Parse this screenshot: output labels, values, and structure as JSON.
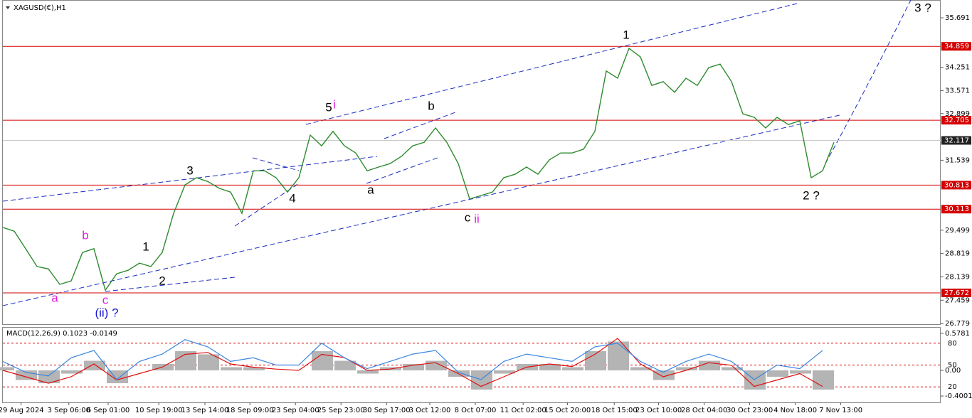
{
  "chart_data": [
    {
      "type": "line",
      "title": "XAGUSD(€),H1",
      "color": "#2e8b2e",
      "x": [
        0,
        1,
        2,
        3,
        4,
        5,
        6,
        7,
        8,
        9,
        10,
        11,
        12,
        13,
        14,
        15,
        16,
        17,
        18,
        19,
        20,
        21,
        22,
        23,
        24,
        25,
        26,
        27,
        28,
        29,
        30,
        31,
        32,
        33,
        34,
        35,
        36,
        37,
        38,
        39,
        40,
        41,
        42,
        43,
        44,
        45,
        46,
        47,
        48,
        49,
        50,
        51,
        52,
        53,
        54,
        55,
        56,
        57,
        58,
        59,
        60,
        61,
        62,
        63,
        64,
        65,
        66,
        67,
        68,
        69,
        70,
        71,
        72,
        73
      ],
      "values": [
        29.58,
        29.47,
        28.96,
        28.44,
        28.37,
        27.92,
        28.02,
        28.85,
        28.96,
        27.75,
        28.23,
        28.33,
        28.54,
        28.44,
        28.85,
        29.99,
        30.82,
        31.03,
        30.92,
        30.72,
        30.61,
        29.99,
        31.23,
        31.23,
        31.03,
        30.61,
        31.03,
        32.27,
        31.96,
        32.38,
        31.96,
        31.75,
        31.23,
        31.34,
        31.44,
        31.65,
        31.96,
        32.06,
        32.48,
        32.06,
        31.44,
        30.41,
        30.51,
        30.61,
        31.03,
        31.13,
        31.34,
        31.13,
        31.55,
        31.75,
        31.75,
        31.86,
        32.38,
        34.14,
        33.93,
        34.8,
        34.55,
        33.72,
        33.83,
        33.52,
        33.93,
        33.72,
        34.24,
        34.34,
        33.83,
        32.89,
        32.79,
        32.48,
        32.79,
        32.58,
        32.69,
        31.03,
        31.23,
        32.06
      ],
      "xlim": [
        0,
        82.375
      ],
      "ylim": [
        26.76,
        36.21
      ],
      "yticks": [
        35.691,
        34.251,
        33.571,
        32.899,
        31.539,
        29.499,
        28.819,
        28.139,
        27.459,
        26.779
      ],
      "xticks": [
        {
          "value": 1.6,
          "label": "29 Aug 2024"
        },
        {
          "value": 5.8,
          "label": "3 Sep 06:00"
        },
        {
          "value": 9.25,
          "label": "6 Sep 01:00"
        },
        {
          "value": 13.7,
          "label": "10 Sep 19:00"
        },
        {
          "value": 17.75,
          "label": "13 Sep 14:00"
        },
        {
          "value": 21.7,
          "label": "18 Sep 09:00"
        },
        {
          "value": 25.7,
          "label": "23 Sep 04:00"
        },
        {
          "value": 29.7,
          "label": "25 Sep 23:00"
        },
        {
          "value": 33.7,
          "label": "30 Sep 17:00"
        },
        {
          "value": 37.5,
          "label": "3 Oct 12:00"
        },
        {
          "value": 41.5,
          "label": "8 Oct 07:00"
        },
        {
          "value": 45.7,
          "label": "11 Oct 02:00"
        },
        {
          "value": 49.6,
          "label": "15 Oct 20:00"
        },
        {
          "value": 53.7,
          "label": "18 Oct 15:00"
        },
        {
          "value": 57.6,
          "label": "23 Oct 10:00"
        },
        {
          "value": 61.6,
          "label": "28 Oct 04:00"
        },
        {
          "value": 65.6,
          "label": "30 Oct 23:00"
        },
        {
          "value": 69.6,
          "label": "4 Nov 18:00"
        },
        {
          "value": 73.6,
          "label": "7 Nov 13:00"
        }
      ],
      "levels": [
        34.859,
        32.705,
        30.813,
        30.113,
        27.672
      ],
      "level_color": "#d40000",
      "last_value": 32.117,
      "annotations": [
        {
          "text": "1",
          "color": "#000000"
        },
        {
          "text": "5",
          "color": "#000000"
        },
        {
          "text": "i",
          "color": "#e020e0"
        },
        {
          "text": "b",
          "color": "#000000"
        },
        {
          "text": "3",
          "color": "#000000"
        },
        {
          "text": "4",
          "color": "#000000"
        },
        {
          "text": "a",
          "color": "#000000"
        },
        {
          "text": "c",
          "color": "#000000"
        },
        {
          "text": "ii",
          "color": "#e020e0"
        },
        {
          "text": "2 ?",
          "color": "#000000"
        },
        {
          "text": "3 ?",
          "color": "#000000"
        },
        {
          "text": "b",
          "color": "#e020e0"
        },
        {
          "text": "1",
          "color": "#000000"
        },
        {
          "text": "2",
          "color": "#000000"
        },
        {
          "text": "a",
          "color": "#e020e0"
        },
        {
          "text": "c",
          "color": "#e020e0"
        },
        {
          "text": "(ii) ?",
          "color": "#1515c8"
        }
      ]
    },
    {
      "type": "macd",
      "title": "MACD(12,26,9) 0.1023 -0.0149",
      "x": [
        0,
        2,
        4,
        6,
        8,
        10,
        12,
        14,
        16,
        18,
        20,
        22,
        24,
        26,
        28,
        30,
        32,
        34,
        36,
        38,
        40,
        42,
        44,
        46,
        48,
        50,
        52,
        54,
        56,
        58,
        60,
        62,
        64,
        66,
        68,
        70,
        72
      ],
      "xlim": [
        0,
        82.375
      ],
      "ylim": [
        -0.499,
        0.666
      ],
      "y2lim": [
        -1.3,
        101.3
      ],
      "yticks": [
        0.5781,
        {
          "value": 0,
          "label": "0.00"
        },
        -0.4001
      ],
      "y2ticks": [
        80,
        50,
        20
      ],
      "series": [
        {
          "name": "MACD",
          "color": "#b4b4b4",
          "values": [
            0.05,
            -0.15,
            -0.2,
            -0.05,
            0.15,
            -0.2,
            0.0,
            0.1,
            0.3,
            0.25,
            0.05,
            0.05,
            0.0,
            0.0,
            0.3,
            0.15,
            -0.05,
            0.05,
            0.1,
            0.15,
            -0.1,
            -0.3,
            -0.05,
            0.1,
            0.1,
            0.05,
            0.3,
            0.45,
            0.05,
            -0.15,
            0.05,
            0.15,
            0.05,
            -0.3,
            -0.1,
            -0.05,
            -0.3
          ]
        },
        {
          "name": "Signal",
          "color": "#e01010",
          "values": [
            0.0,
            -0.1,
            -0.2,
            -0.1,
            0.1,
            -0.15,
            -0.05,
            0.05,
            0.25,
            0.28,
            0.1,
            0.05,
            0.02,
            0.0,
            0.25,
            0.2,
            0.0,
            0.02,
            0.08,
            0.12,
            -0.05,
            -0.25,
            -0.1,
            0.05,
            0.1,
            0.06,
            0.25,
            0.5,
            0.1,
            -0.1,
            0.0,
            0.12,
            0.08,
            -0.25,
            -0.15,
            -0.05,
            -0.25
          ]
        },
        {
          "name": "Oscillator",
          "color": "#3a86e0",
          "axis": "y2",
          "values": [
            55,
            40,
            35,
            60,
            70,
            30,
            55,
            65,
            85,
            75,
            55,
            60,
            50,
            50,
            80,
            60,
            45,
            55,
            65,
            70,
            40,
            30,
            55,
            65,
            60,
            55,
            75,
            80,
            55,
            40,
            55,
            65,
            55,
            30,
            50,
            45,
            70
          ]
        }
      ]
    }
  ]
}
